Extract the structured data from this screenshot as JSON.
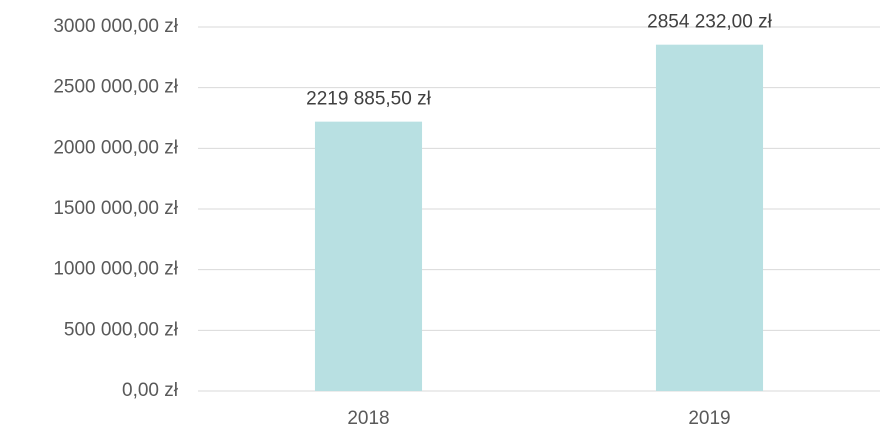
{
  "chart_data": {
    "type": "bar",
    "categories": [
      "2018",
      "2019"
    ],
    "values": [
      2219885.5,
      2854232
    ],
    "value_labels": [
      "2219 885,50 zł",
      "2854 232,00 zł"
    ],
    "color": "#b8e0e2",
    "ylim": [
      0,
      3000000
    ],
    "yticks": [
      {
        "value": 0,
        "label": "0,00 zł"
      },
      {
        "value": 500000,
        "label": "500 000,00 zł"
      },
      {
        "value": 1000000,
        "label": "1000 000,00 zł"
      },
      {
        "value": 1500000,
        "label": "1500 000,00 zł"
      },
      {
        "value": 2000000,
        "label": "2000 000,00 zł"
      },
      {
        "value": 2500000,
        "label": "2500 000,00 zł"
      },
      {
        "value": 3000000,
        "label": "3000 000,00 zł"
      }
    ],
    "grid": true
  }
}
